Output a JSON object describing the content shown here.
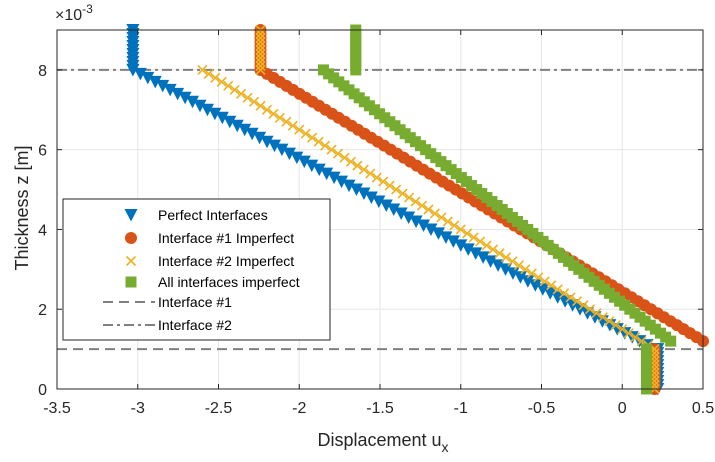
{
  "chart_data": {
    "type": "scatter",
    "title": "",
    "xlabel": "Displacement u",
    "xlabel_sub": "x",
    "ylabel": "Thickness z [m]",
    "y_exponent_prefix": "×10",
    "y_exponent_power": "-3",
    "xlim": [
      -3.5,
      0.5
    ],
    "ylim": [
      0,
      9
    ],
    "x_ticks": [
      -3.5,
      -3,
      -2.5,
      -2,
      -1.5,
      -1,
      -0.5,
      0,
      0.5
    ],
    "x_tick_labels": [
      "-3.5",
      "-3",
      "-2.5",
      "-2",
      "-1.5",
      "-1",
      "-0.5",
      "0",
      "0.5"
    ],
    "y_ticks": [
      0,
      2,
      4,
      6,
      8
    ],
    "y_tick_labels": [
      "0",
      "2",
      "4",
      "6",
      "8"
    ],
    "grid": true,
    "legend_position": "left",
    "z_units_scale": "1e-3",
    "series": [
      {
        "name": "Perfect Interfaces",
        "marker": "triangle-down",
        "color": "#0072BD",
        "segments": [
          {
            "x": [
              -3.03,
              -3.03
            ],
            "y": [
              8.0,
              9.0
            ]
          },
          {
            "x": [
              -3.03,
              0.2
            ],
            "y": [
              8.0,
              1.0
            ]
          },
          {
            "x": [
              0.22,
              0.22
            ],
            "y": [
              0.0,
              1.0
            ]
          }
        ]
      },
      {
        "name": "Interface #1 Imperfect",
        "marker": "circle",
        "color": "#D95319",
        "segments": [
          {
            "x": [
              -2.24,
              -2.24
            ],
            "y": [
              8.0,
              9.0
            ]
          },
          {
            "x": [
              -2.24,
              0.5
            ],
            "y": [
              8.0,
              1.2
            ]
          },
          {
            "x": [
              0.2,
              0.2
            ],
            "y": [
              0.0,
              1.0
            ]
          }
        ]
      },
      {
        "name": "Interface #2 Imperfect",
        "marker": "x",
        "color": "#EDB120",
        "segments": [
          {
            "x": [
              -2.24,
              -2.24
            ],
            "y": [
              8.0,
              9.0
            ]
          },
          {
            "x": [
              -2.6,
              0.2
            ],
            "y": [
              8.0,
              1.0
            ]
          },
          {
            "x": [
              0.2,
              0.2
            ],
            "y": [
              0.0,
              1.0
            ]
          }
        ]
      },
      {
        "name": "All interfaces imperfect",
        "marker": "square",
        "color": "#77AC30",
        "segments": [
          {
            "x": [
              -1.65,
              -1.65
            ],
            "y": [
              8.0,
              9.0
            ]
          },
          {
            "x": [
              -1.85,
              0.3
            ],
            "y": [
              8.0,
              1.2
            ]
          },
          {
            "x": [
              0.15,
              0.15
            ],
            "y": [
              0.0,
              1.0
            ]
          }
        ]
      }
    ],
    "reference_lines": [
      {
        "name": "Interface #1",
        "y": 1.0,
        "style": "dashed",
        "color": "#808080"
      },
      {
        "name": "Interface #2",
        "y": 8.0,
        "style": "dashdot",
        "color": "#808080"
      }
    ]
  }
}
